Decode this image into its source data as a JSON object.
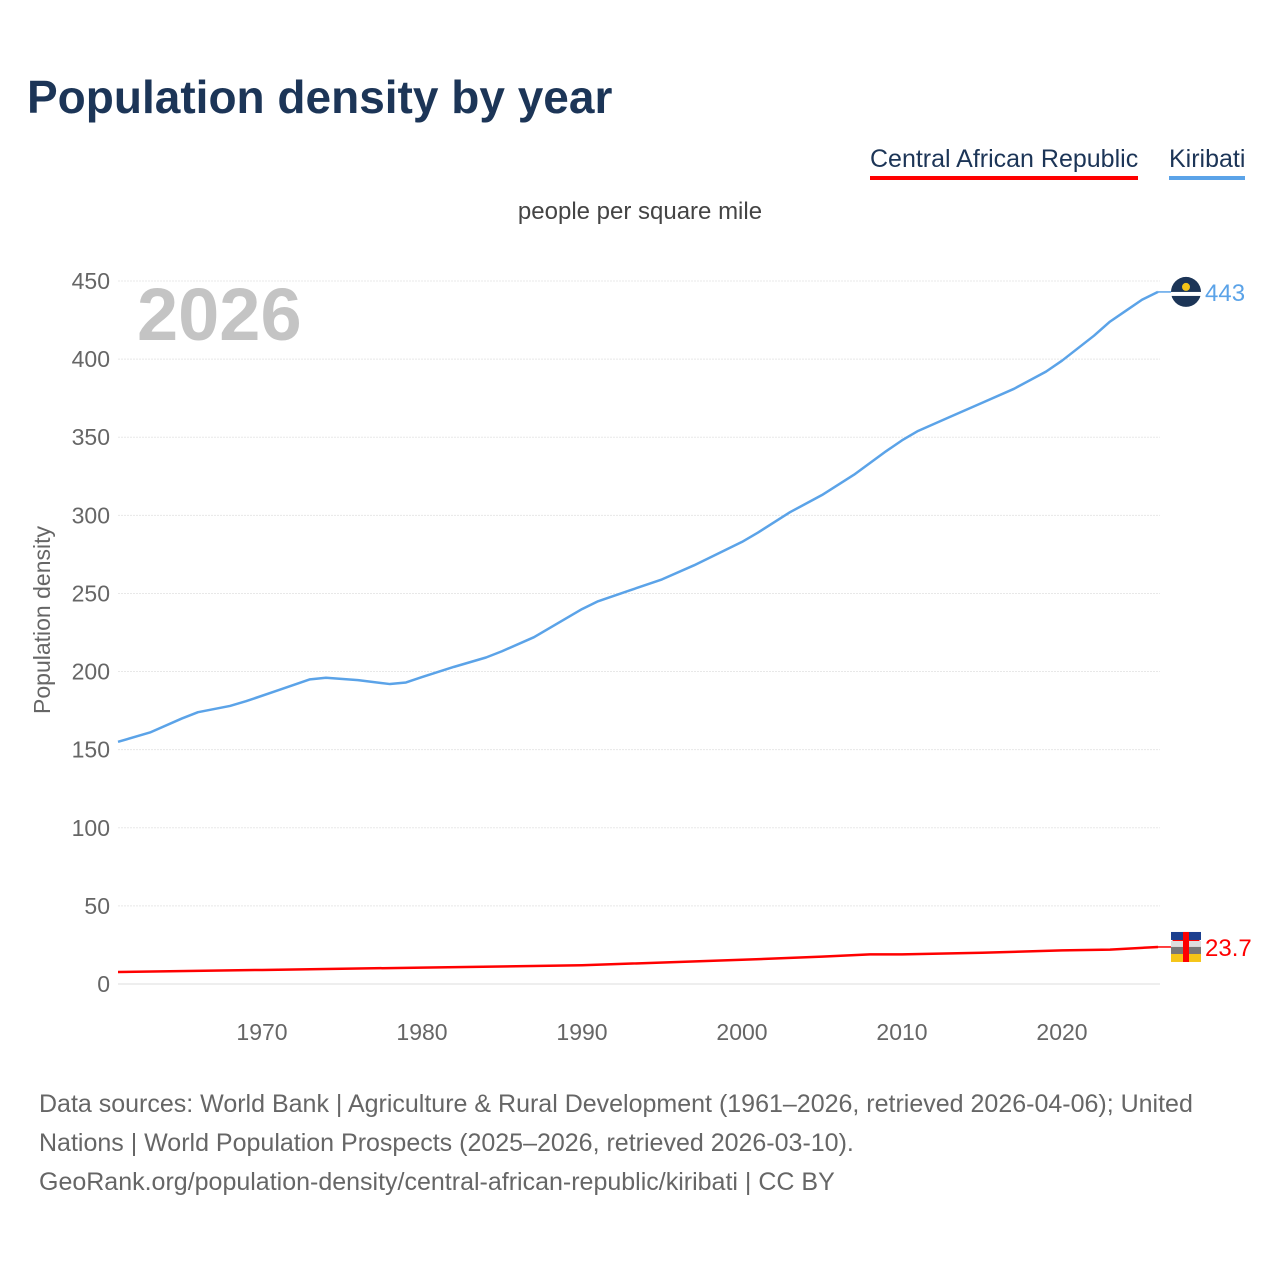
{
  "title": "Population density by year",
  "legend": [
    {
      "name": "Central African Republic",
      "color": "#ff0000"
    },
    {
      "name": "Kiribati",
      "color": "#5ba3e8"
    }
  ],
  "subtitle": "people per square mile",
  "year_label": "2026",
  "chart_data": {
    "type": "line",
    "title": "Population density by year",
    "xlabel": "",
    "ylabel": "Population density",
    "xlim": [
      1961,
      2026
    ],
    "ylim": [
      0,
      450
    ],
    "xticks": [
      1970,
      1980,
      1990,
      2000,
      2010,
      2020
    ],
    "yticks": [
      0,
      50,
      100,
      150,
      200,
      250,
      300,
      350,
      400,
      450
    ],
    "grid": true,
    "legend_position": "top-right",
    "series": [
      {
        "name": "Kiribati",
        "color": "#5ba3e8",
        "end_label": "443",
        "x": [
          1961,
          1963,
          1965,
          1966,
          1968,
          1969,
          1971,
          1973,
          1974,
          1976,
          1978,
          1979,
          1980,
          1982,
          1984,
          1985,
          1987,
          1989,
          1990,
          1991,
          1993,
          1995,
          1997,
          2000,
          2001,
          2003,
          2005,
          2007,
          2009,
          2010,
          2011,
          2013,
          2015,
          2017,
          2019,
          2020,
          2022,
          2023,
          2024,
          2025,
          2026
        ],
        "y": [
          155,
          161,
          170,
          174,
          178,
          181,
          188,
          195,
          196,
          194.5,
          192,
          193,
          196.5,
          203,
          209,
          213,
          222,
          234,
          240,
          245,
          252,
          259,
          268,
          283,
          289,
          302,
          313,
          326,
          341,
          348,
          354,
          363,
          372,
          381,
          392,
          399,
          415,
          424,
          431,
          438,
          443
        ]
      },
      {
        "name": "Central African Republic",
        "color": "#ff0000",
        "end_label": "23.7",
        "x": [
          1961,
          1970,
          1980,
          1990,
          2000,
          2005,
          2008,
          2010,
          2015,
          2020,
          2023,
          2026
        ],
        "y": [
          7.7,
          9,
          10.5,
          12,
          15.5,
          17.5,
          19,
          19,
          20,
          21.5,
          22,
          23.7
        ]
      }
    ]
  },
  "footer": {
    "line1": "Data sources: World Bank | Agriculture & Rural Development (1961–2026, retrieved 2026-04-06); United Nations | World Population Prospects (2025–2026, retrieved 2026-03-10).",
    "line2": "GeoRank.org/population-density/central-african-republic/kiribati | CC BY"
  }
}
